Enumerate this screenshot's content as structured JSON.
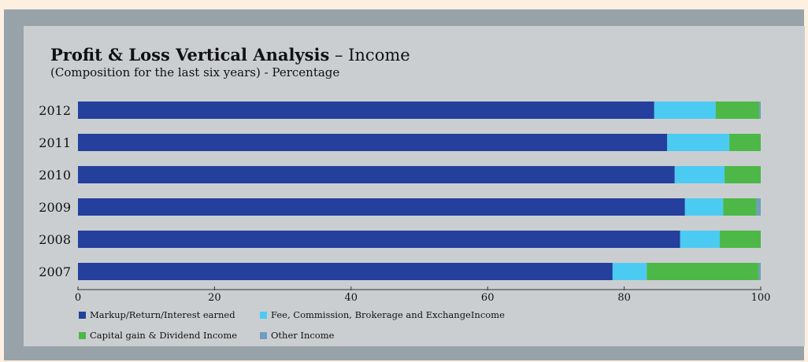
{
  "colors": {
    "page_background": "#fdf0e0",
    "frame": "#98a3a9",
    "panel": "#cbced1"
  },
  "chart_data": {
    "type": "bar",
    "orientation": "horizontal",
    "stacked": true,
    "title_bold": "Profit & Loss Vertical Analysis",
    "title_rest": " – Income",
    "subtitle": "(Composition for the last six years)  - Percentage",
    "categories": [
      "2012",
      "2011",
      "2010",
      "2009",
      "2008",
      "2007"
    ],
    "series": [
      {
        "name": "Markup/Return/Interest earned",
        "color": "#243f9c",
        "values": [
          84.4,
          86.3,
          87.4,
          88.9,
          88.2,
          78.3
        ]
      },
      {
        "name": "Fee, Commission, Brokerage and ExchangeIncome",
        "color": "#4ccbf2",
        "values": [
          9.0,
          9.1,
          7.3,
          5.6,
          5.8,
          5.0
        ]
      },
      {
        "name": "Capital gain & Dividend Income",
        "color": "#4db848",
        "values": [
          6.4,
          4.6,
          5.3,
          4.9,
          6.0,
          16.4
        ]
      },
      {
        "name": "Other Income",
        "color": "#6e9ec0",
        "values": [
          0.2,
          0.0,
          0.0,
          0.6,
          0.0,
          0.3
        ]
      }
    ],
    "xlim": [
      0,
      100
    ],
    "xticks": [
      "0",
      "20",
      "40",
      "60",
      "80",
      "100"
    ],
    "grid": false,
    "legend_position": "bottom"
  }
}
